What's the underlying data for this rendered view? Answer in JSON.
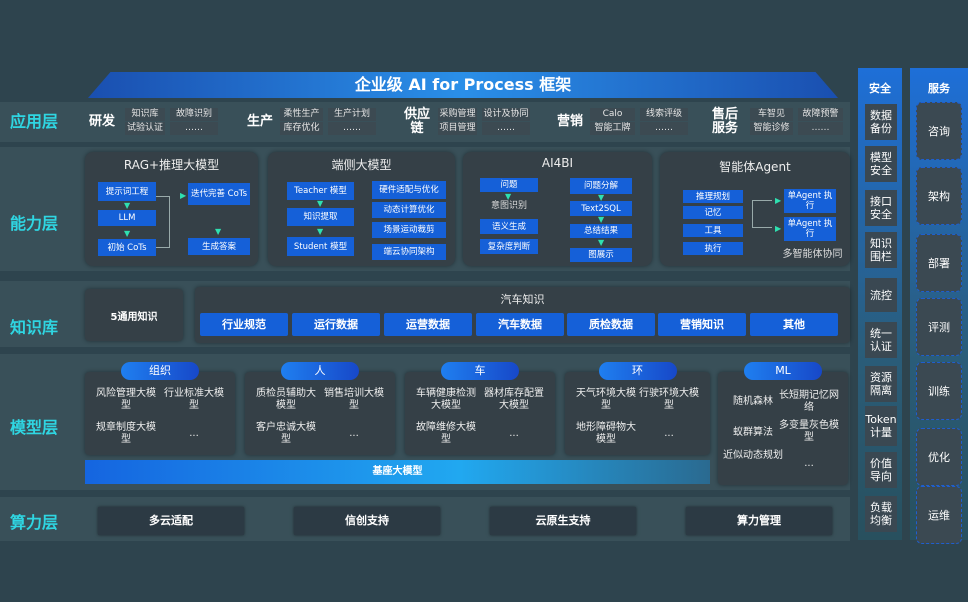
{
  "title": "企业级 AI for Process 框架",
  "layers": [
    "应用层",
    "能力层",
    "知识库",
    "模型层",
    "算力层"
  ],
  "app": [
    {
      "name": "研发",
      "items": [
        "知识库",
        "试验认证",
        "故障识别",
        "……"
      ]
    },
    {
      "name": "生产",
      "items": [
        "柔性生产",
        "库存优化",
        "生产计划",
        "……"
      ]
    },
    {
      "name": "供应链",
      "items": [
        "采购管理",
        "项目管理",
        "设计及协同",
        "……"
      ]
    },
    {
      "name": "营销",
      "items": [
        "Calo",
        "智能工牌",
        "线索评级",
        "……"
      ]
    },
    {
      "name": "售后服务",
      "items": [
        "车智见",
        "智能诊修",
        "故障预警",
        "……"
      ]
    }
  ],
  "ability": {
    "rag": {
      "title": "RAG+推理大模型",
      "items": [
        "提示词工程",
        "LLM",
        "初始 CoTs",
        "迭代完善 CoTs",
        "生成答案"
      ]
    },
    "edge": {
      "title": "端侧大模型",
      "items": [
        "Teacher 模型",
        "知识提取",
        "Student 模型",
        "硬件适配与优化",
        "动态计算优化",
        "场景运动裁剪",
        "端云协同架构"
      ]
    },
    "ai4bi": {
      "title": "AI4BI",
      "items": [
        "问题",
        "意图识别",
        "语义生成",
        "复杂度判断",
        "问题分解",
        "Text2SQL",
        "总结结果",
        "图展示"
      ]
    },
    "agent": {
      "title": "智能体Agent",
      "items": [
        "推理规划",
        "记忆",
        "工具",
        "执行",
        "单Agent 执行",
        "单Agent 执行"
      ],
      "caption": "多智能体协同"
    }
  },
  "knowledge": {
    "general": "5通用知识",
    "auto_title": "汽车知识",
    "chips": [
      "行业规范",
      "运行数据",
      "运营数据",
      "汽车数据",
      "质检数据",
      "营销知识",
      "其他"
    ]
  },
  "models": [
    {
      "name": "组织",
      "items": [
        "风险管理大模型",
        "行业标准大模型",
        "规章制度大模型",
        "..."
      ]
    },
    {
      "name": "人",
      "items": [
        "质检员辅助大模型",
        "销售培训大模型",
        "客户忠诚大模型",
        "..."
      ]
    },
    {
      "name": "车",
      "items": [
        "车辆健康检测大模型",
        "器材库存配置大模型",
        "故障维修大模型",
        "..."
      ]
    },
    {
      "name": "环",
      "items": [
        "天气环境大模型",
        "行驶环境大模型",
        "地形障碍物大模型",
        "..."
      ]
    },
    {
      "name": "ML",
      "items": [
        "随机森林",
        "长短期记忆网络",
        "蚁群算法",
        "多变量灰色模型",
        "近似动态规划",
        "..."
      ]
    }
  ],
  "base_model": "基座大模型",
  "compute": [
    "多云适配",
    "信创支持",
    "云原生支持",
    "算力管理"
  ],
  "security": {
    "title": "安全",
    "items": [
      "数据备份",
      "模型安全",
      "接口安全",
      "知识围栏",
      "流控",
      "统一认证",
      "资源隔离",
      "Token计量",
      "价值导向",
      "负载均衡"
    ]
  },
  "service": {
    "title": "服务",
    "items": [
      "咨询",
      "架构",
      "部署",
      "评测",
      "训练",
      "优化",
      "运维"
    ]
  }
}
